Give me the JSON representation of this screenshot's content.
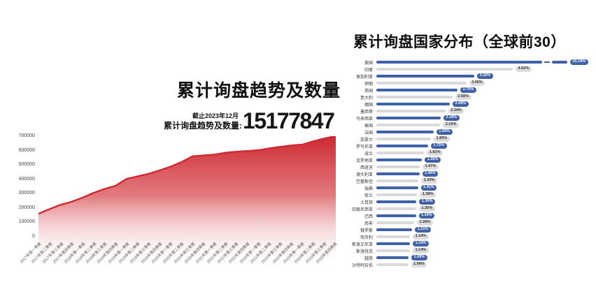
{
  "summary": {
    "as_of": "截止2023年12月",
    "stat_label": "累计询盘趋势及数量:",
    "stat_value": "15177847"
  },
  "area_style": {
    "line_color": "#ce2930",
    "fill_top_color": "#cd2830",
    "fill_bottom_color": "#ffffff"
  },
  "bar_style": {
    "bar_color_primary": "#3e61a8",
    "bar_color_secondary": "#d9d9d9",
    "badge_gray_bg": "#dcdcdc",
    "badge_text_light": "#ffffff",
    "badge_text_dark": "#333333"
  },
  "chart_data": [
    {
      "type": "area",
      "title": "累计询盘趋势及数量",
      "xlabel": "",
      "ylabel": "",
      "ylim": [
        0,
        700000
      ],
      "yticks": [
        700000,
        600000,
        500000,
        400000,
        300000,
        200000,
        100000,
        0
      ],
      "grid": false,
      "legend": null,
      "x": [
        "2017年第一季度",
        "2017年第二季度",
        "2017年第三季度",
        "2017年第四季度",
        "2018年第一季度",
        "2018年第二季度",
        "2018年第三季度",
        "2018年第四季度",
        "2019年第一季度",
        "2019年第二季度",
        "2019年第三季度",
        "2019年第四季度",
        "2020年第一季度",
        "2020年第二季度",
        "2020年第三季度",
        "2020年第四季度",
        "2021年第一季度",
        "2021年第二季度",
        "2021年第三季度",
        "2021年第四季度",
        "2022年第一季度",
        "2022年第二季度",
        "2022年第三季度",
        "2022年第四季度",
        "2023年第一季度",
        "2023年第二季度",
        "2023年第三季度",
        "2023年第四季度"
      ],
      "values": [
        160000,
        192000,
        222000,
        243000,
        272000,
        305000,
        333000,
        355000,
        402000,
        420000,
        438000,
        462000,
        488000,
        520000,
        560000,
        566000,
        572000,
        585000,
        592000,
        597000,
        603000,
        616000,
        626000,
        636000,
        642000,
        665000,
        685000,
        700000
      ]
    },
    {
      "type": "bar",
      "orientation": "horizontal",
      "title": "累计询盘国家分布（全球前30）",
      "unit": "percent",
      "axis_break_on": "美国",
      "legend": null,
      "categories": [
        "美国",
        "印度",
        "保加利亚",
        "伊朗",
        "英国",
        "意大利",
        "德国",
        "墨西哥",
        "马来西亚",
        "泰国",
        "法国",
        "加拿大",
        "罗马尼亚",
        "波兰",
        "克罗地亚",
        "西班牙",
        "澳大利亚",
        "巴基斯坦",
        "瑞典",
        "荷兰",
        "土耳其",
        "印度尼西亚",
        "巴西",
        "南非",
        "俄罗斯",
        "匈牙利",
        "斯洛文尼亚",
        "斯洛伐克",
        "越南",
        "沙特阿拉伯"
      ],
      "values": [
        33.19,
        4.62,
        3.32,
        3.05,
        2.75,
        2.58,
        2.49,
        2.34,
        2.18,
        2.16,
        1.94,
        1.85,
        1.75,
        1.62,
        1.55,
        1.47,
        1.46,
        1.43,
        1.41,
        1.38,
        1.36,
        1.35,
        1.34,
        1.28,
        1.21,
        1.14,
        1.14,
        1.14,
        1.09,
        1.08
      ],
      "labels": [
        "33.19%",
        "4.62%",
        "3.32%",
        "3.05%",
        "2.75%",
        "2.58%",
        "2.49%",
        "2.34%",
        "2.18%",
        "2.16%",
        "1.94%",
        "1.85%",
        "1.75%",
        "1.62%",
        "1.55%",
        "1.47%",
        "1.46%",
        "1.43%",
        "1.41%",
        "1.38%",
        "1.36%",
        "1.35%",
        "1.34%",
        "1.28%",
        "1.21%",
        "1.14%",
        "1.14%",
        "1.14%",
        "1.09%",
        "1.08%"
      ]
    }
  ]
}
